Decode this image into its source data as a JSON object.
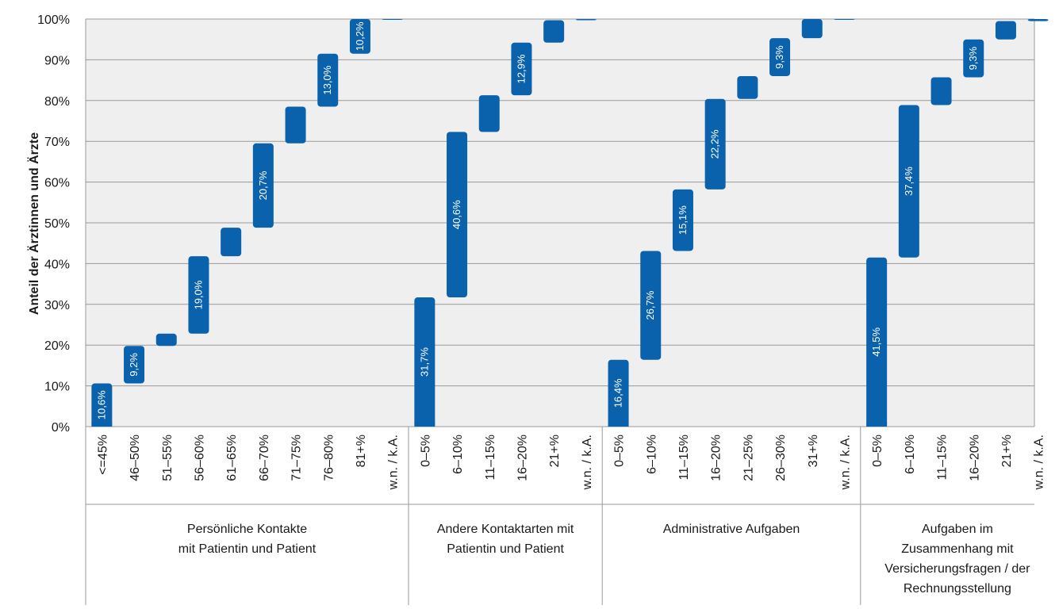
{
  "chart_data": {
    "type": "bar",
    "subtype": "stacked-segments (floating bars showing cumulative share ranges)",
    "ylabel": "Anteil der Ärztinnen und Ärzte",
    "ylim": [
      0,
      100
    ],
    "yticks": [
      "0%",
      "10%",
      "20%",
      "30%",
      "40%",
      "50%",
      "60%",
      "70%",
      "80%",
      "90%",
      "100%"
    ],
    "grid": true,
    "bar_color": "#0a62ac",
    "plot_background": "#efefef",
    "groups": [
      {
        "label_lines": [
          "Persönliche Kontakte",
          "mit Patientin und Patient"
        ],
        "categories": [
          "<=45%",
          "46–50%",
          "51–55%",
          "56–60%",
          "61–65%",
          "66–70%",
          "71–75%",
          "76–80%",
          "81+%",
          "w.n. / k.A."
        ],
        "values": [
          10.6,
          9.2,
          3.0,
          19.0,
          7.0,
          20.7,
          9.0,
          13.0,
          10.2,
          1.9
        ],
        "value_labels": [
          "10,6%",
          "9,2%",
          "",
          "19,0%",
          "",
          "20,7%",
          "",
          "13,0%",
          "10,2%",
          ""
        ]
      },
      {
        "label_lines": [
          "Andere Kontaktarten mit",
          "Patientin und Patient"
        ],
        "categories": [
          "0–5%",
          "6–10%",
          "11–15%",
          "16–20%",
          "21+%",
          "w.n. / k.A."
        ],
        "values": [
          31.7,
          40.6,
          9.0,
          12.9,
          5.5,
          2.5
        ],
        "value_labels": [
          "31,7%",
          "40,6%",
          "",
          "12,9%",
          "",
          ""
        ]
      },
      {
        "label_lines": [
          "Administrative Aufgaben"
        ],
        "categories": [
          "0–5%",
          "6–10%",
          "11–15%",
          "16–20%",
          "21–25%",
          "26–30%",
          "31+%",
          "w.n. / k.A."
        ],
        "values": [
          16.4,
          26.7,
          15.1,
          22.2,
          5.6,
          9.3,
          5.5,
          2.2
        ],
        "value_labels": [
          "16,4%",
          "26,7%",
          "15,1%",
          "22,2%",
          "",
          "9,3%",
          "",
          ""
        ]
      },
      {
        "label_lines": [
          "Aufgaben im",
          "Zusammenhang mit",
          "Versicherungsfragen / der",
          "Rechnungsstellung"
        ],
        "categories": [
          "0–5%",
          "6–10%",
          "11–15%",
          "16–20%",
          "21+%",
          "w.n. / k.A."
        ],
        "values": [
          41.5,
          37.4,
          6.8,
          9.3,
          4.5,
          1.9
        ],
        "value_labels": [
          "41,5%",
          "37,4%",
          "",
          "9,3%",
          "",
          ""
        ]
      }
    ]
  }
}
